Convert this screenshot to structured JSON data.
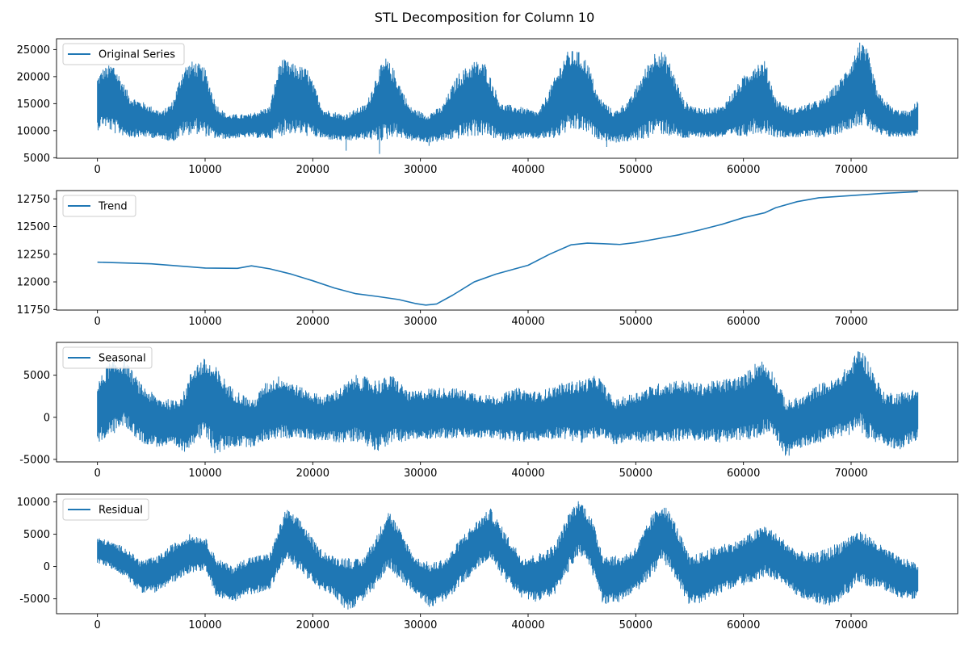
{
  "title": "STL Decomposition for Column 10",
  "chart_data": [
    {
      "type": "line",
      "legend": "Original Series",
      "legend_loc": "upper-left",
      "xlim": [
        -3800,
        79900
      ],
      "ylim": [
        4900,
        27000
      ],
      "xticks": [
        0,
        10000,
        20000,
        30000,
        40000,
        50000,
        60000,
        70000
      ],
      "yticks": [
        5000,
        10000,
        15000,
        20000,
        25000
      ],
      "color": "#1f77b4",
      "envelope_x": [
        0,
        500,
        1500,
        3000,
        4500,
        6000,
        7000,
        8000,
        9000,
        10000,
        11000,
        12000,
        14000,
        16000,
        17000,
        18000,
        19500,
        21000,
        23000,
        25000,
        26000,
        26800,
        27500,
        29000,
        30500,
        32000,
        33500,
        35000,
        36000,
        37500,
        39000,
        41000,
        42500,
        43500,
        44500,
        45500,
        46500,
        48000,
        49500,
        51000,
        52000,
        53000,
        54500,
        56000,
        58000,
        60000,
        61000,
        62000,
        63000,
        64500,
        66000,
        67500,
        69000,
        70000,
        70800,
        71500,
        72500,
        74000,
        75500,
        76200
      ],
      "envelope_hi": [
        20000,
        21500,
        22500,
        16500,
        15000,
        13500,
        15500,
        22000,
        23000,
        21500,
        15000,
        13000,
        13000,
        14500,
        23500,
        22500,
        21500,
        14000,
        13000,
        15000,
        21000,
        23500,
        21500,
        14500,
        13000,
        14500,
        20500,
        23000,
        22500,
        15000,
        14500,
        13500,
        20000,
        24500,
        25000,
        23000,
        16500,
        13500,
        16000,
        22000,
        25500,
        23500,
        15500,
        14000,
        14500,
        20000,
        22500,
        23000,
        16000,
        14000,
        15000,
        16000,
        19500,
        23000,
        26300,
        25000,
        17000,
        14000,
        13500,
        16000
      ],
      "envelope_lo": [
        10000,
        11000,
        9500,
        8800,
        8800,
        8500,
        8000,
        9000,
        9500,
        9000,
        8500,
        8500,
        8800,
        8500,
        9000,
        9500,
        9000,
        8500,
        8000,
        8500,
        8000,
        8200,
        9000,
        8200,
        7800,
        8000,
        8500,
        9000,
        9000,
        8200,
        8500,
        8500,
        8500,
        9500,
        10000,
        9500,
        8500,
        7800,
        8000,
        8500,
        9500,
        9000,
        8500,
        8800,
        8800,
        8800,
        9500,
        9500,
        8800,
        8800,
        8800,
        8800,
        9500,
        10500,
        11000,
        10500,
        9000,
        8800,
        9000,
        9000
      ],
      "extremes": [
        {
          "x": 23100,
          "min": 6300
        },
        {
          "x": 26200,
          "min": 5700
        },
        {
          "x": 30800,
          "min": 7200
        },
        {
          "x": 47300,
          "min": 7000
        },
        {
          "x": 70800,
          "max": 26300
        }
      ]
    },
    {
      "type": "line",
      "legend": "Trend",
      "legend_loc": "upper-left",
      "xlim": [
        -3800,
        79900
      ],
      "ylim": [
        11745,
        12825
      ],
      "xticks": [
        0,
        10000,
        20000,
        30000,
        40000,
        50000,
        60000,
        70000
      ],
      "yticks": [
        11750,
        12000,
        12250,
        12500,
        12750
      ],
      "color": "#1f77b4",
      "x": [
        0,
        5000,
        10000,
        13000,
        14300,
        16000,
        18000,
        20000,
        22000,
        24000,
        26000,
        28000,
        29500,
        30500,
        31500,
        33000,
        35000,
        37000,
        40000,
        42000,
        44000,
        45500,
        47000,
        48500,
        50000,
        52000,
        54000,
        56000,
        58000,
        60000,
        62000,
        63000,
        65000,
        67000,
        70000,
        73000,
        76200
      ],
      "y": [
        12178,
        12163,
        12125,
        12122,
        12145,
        12118,
        12070,
        12010,
        11945,
        11893,
        11868,
        11840,
        11805,
        11790,
        11800,
        11880,
        12000,
        12070,
        12150,
        12250,
        12335,
        12350,
        12345,
        12338,
        12355,
        12390,
        12425,
        12470,
        12520,
        12580,
        12625,
        12670,
        12725,
        12760,
        12780,
        12800,
        12815
      ]
    },
    {
      "type": "line",
      "legend": "Seasonal",
      "legend_loc": "upper-left",
      "xlim": [
        -3800,
        79900
      ],
      "ylim": [
        -5300,
        8900
      ],
      "xticks": [
        0,
        10000,
        20000,
        30000,
        40000,
        50000,
        60000,
        70000
      ],
      "yticks": [
        -5000,
        0,
        5000
      ],
      "color": "#1f77b4",
      "envelope_x": [
        0,
        1000,
        2500,
        4000,
        5500,
        7000,
        8000,
        9000,
        10000,
        11000,
        12500,
        14500,
        15500,
        17000,
        19000,
        21000,
        22500,
        24000,
        26000,
        27500,
        29000,
        31000,
        33000,
        35000,
        37000,
        39000,
        41000,
        43000,
        45000,
        46500,
        48000,
        50000,
        52000,
        54000,
        56000,
        58000,
        60000,
        61500,
        62500,
        64000,
        65500,
        67000,
        68500,
        70000,
        70800,
        71500,
        73000,
        74500,
        76200
      ],
      "envelope_hi": [
        4000,
        6500,
        7000,
        4000,
        2500,
        2000,
        3000,
        6500,
        7000,
        6000,
        3500,
        2000,
        4000,
        5000,
        3500,
        2500,
        3500,
        5000,
        4500,
        5000,
        3000,
        3500,
        3500,
        3000,
        2500,
        3500,
        3000,
        4000,
        4500,
        5000,
        2000,
        3000,
        4000,
        4500,
        4000,
        4500,
        5000,
        7000,
        6000,
        2000,
        2500,
        4000,
        4500,
        6500,
        8500,
        7000,
        3000,
        3000,
        3500
      ],
      "envelope_lo": [
        -3000,
        -2500,
        -1000,
        -3000,
        -3500,
        -3500,
        -4200,
        -3000,
        -2500,
        -4500,
        -3500,
        -3500,
        -2800,
        -2500,
        -2500,
        -2800,
        -3000,
        -2800,
        -4000,
        -3000,
        -2800,
        -2500,
        -2500,
        -2500,
        -2500,
        -3000,
        -2800,
        -2500,
        -3000,
        -2500,
        -3200,
        -3000,
        -3000,
        -2800,
        -2800,
        -3000,
        -2800,
        -2500,
        -1500,
        -4800,
        -3500,
        -3000,
        -2500,
        -2000,
        -1500,
        -2500,
        -3500,
        -3800,
        -2700
      ]
    },
    {
      "type": "line",
      "legend": "Residual",
      "legend_loc": "upper-left",
      "xlim": [
        -3800,
        79900
      ],
      "ylim": [
        -7300,
        11200
      ],
      "xticks": [
        0,
        10000,
        20000,
        30000,
        40000,
        50000,
        60000,
        70000
      ],
      "yticks": [
        -5000,
        0,
        5000,
        10000
      ],
      "color": "#1f77b4",
      "envelope_x": [
        0,
        1000,
        2500,
        4000,
        5500,
        7000,
        8500,
        10000,
        11000,
        12500,
        14000,
        16000,
        17500,
        19000,
        20500,
        22000,
        23200,
        24500,
        26000,
        27000,
        28000,
        29500,
        31000,
        32500,
        34000,
        35500,
        36500,
        38000,
        39500,
        41000,
        42500,
        44000,
        44800,
        45800,
        47000,
        48500,
        50000,
        51500,
        52500,
        53500,
        55000,
        56500,
        58000,
        59500,
        61000,
        62000,
        63500,
        65000,
        66500,
        68000,
        69500,
        70500,
        71500,
        73000,
        74500,
        76200
      ],
      "envelope_hi": [
        4500,
        4000,
        3000,
        1000,
        1500,
        3500,
        5000,
        4500,
        1500,
        0,
        1500,
        2000,
        9000,
        7000,
        3000,
        1500,
        1500,
        1000,
        5000,
        9000,
        6000,
        1500,
        500,
        1500,
        5000,
        7500,
        9000,
        5000,
        1500,
        2000,
        3500,
        9000,
        10500,
        8000,
        2000,
        1500,
        3000,
        8000,
        10000,
        7500,
        1500,
        2500,
        3500,
        4000,
        5500,
        6500,
        4500,
        2500,
        2000,
        3000,
        4500,
        5500,
        5000,
        3000,
        1500,
        500
      ],
      "envelope_lo": [
        500,
        0,
        -1500,
        -4000,
        -4000,
        -2500,
        -1000,
        -500,
        -4500,
        -5500,
        -4500,
        -3500,
        1000,
        -1000,
        -3500,
        -4500,
        -7000,
        -5500,
        -3000,
        0,
        -2000,
        -4000,
        -6500,
        -5000,
        -2500,
        0,
        1000,
        -2500,
        -5000,
        -5500,
        -4500,
        0,
        2000,
        -500,
        -6000,
        -5500,
        -4000,
        -1500,
        1000,
        -1500,
        -6000,
        -5500,
        -4000,
        -3000,
        -2500,
        -1500,
        -2500,
        -4500,
        -5500,
        -6500,
        -4500,
        -2500,
        -3000,
        -3500,
        -5000,
        -5000
      ]
    }
  ]
}
